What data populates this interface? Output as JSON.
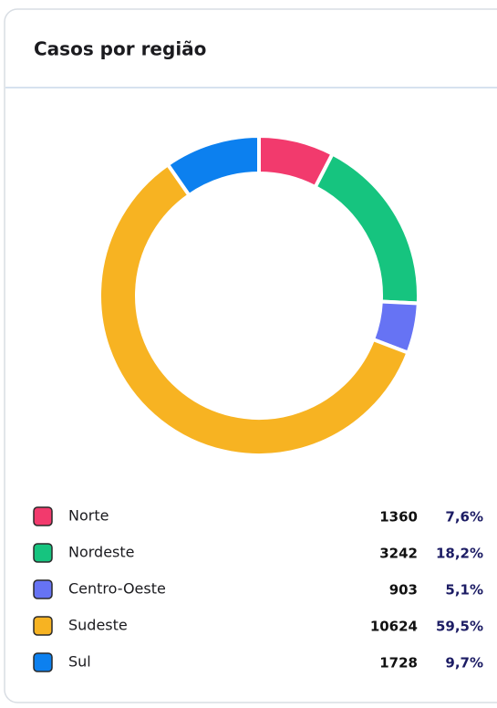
{
  "chart_data": {
    "type": "donut",
    "title": "Casos por região",
    "categories": [
      "Norte",
      "Nordeste",
      "Centro-Oeste",
      "Sudeste",
      "Sul"
    ],
    "values": [
      1360,
      3242,
      903,
      10624,
      1728
    ],
    "percentages": [
      7.6,
      18.2,
      5.1,
      59.5,
      9.7
    ],
    "percentage_labels": [
      "7,6%",
      "18,2%",
      "5,1%",
      "59,5%",
      "9,7%"
    ],
    "colors": [
      "#f23a6d",
      "#16c47f",
      "#6673f4",
      "#f7b322",
      "#0c80ef"
    ]
  }
}
